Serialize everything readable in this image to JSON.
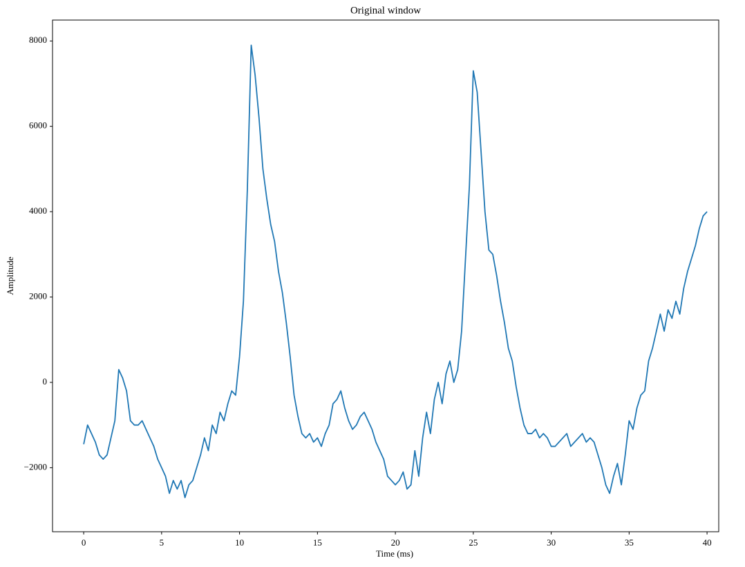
{
  "chart_data": {
    "type": "line",
    "title": "Original window",
    "x_label": "Time (ms)",
    "y_label": "Amplitude",
    "color": "#1f77b4",
    "grid": false,
    "xlim": [
      -2,
      40.75
    ],
    "ylim": [
      -3500,
      8490
    ],
    "xticks": [
      0,
      5,
      10,
      15,
      20,
      25,
      30,
      35,
      40
    ],
    "yticks": [
      {
        "value": -2000,
        "label": "−2000"
      },
      0,
      2000,
      4000,
      6000,
      8000
    ],
    "x": [
      0,
      0.25,
      0.5,
      0.75,
      1,
      1.25,
      1.5,
      1.75,
      2,
      2.25,
      2.5,
      2.75,
      3,
      3.25,
      3.5,
      3.75,
      4,
      4.25,
      4.5,
      4.75,
      5,
      5.25,
      5.5,
      5.75,
      6,
      6.25,
      6.5,
      6.75,
      7,
      7.25,
      7.5,
      7.75,
      8,
      8.25,
      8.5,
      8.75,
      9,
      9.25,
      9.5,
      9.75,
      10,
      10.25,
      10.5,
      10.75,
      11,
      11.25,
      11.5,
      11.75,
      12,
      12.25,
      12.5,
      12.75,
      13,
      13.25,
      13.5,
      13.75,
      14,
      14.25,
      14.5,
      14.75,
      15,
      15.25,
      15.5,
      15.75,
      16,
      16.25,
      16.5,
      16.75,
      17,
      17.25,
      17.5,
      17.75,
      18,
      18.25,
      18.5,
      18.75,
      19,
      19.25,
      19.5,
      19.75,
      20,
      20.25,
      20.5,
      20.75,
      21,
      21.25,
      21.5,
      21.75,
      22,
      22.25,
      22.5,
      22.75,
      23,
      23.25,
      23.5,
      23.75,
      24,
      24.25,
      24.5,
      24.75,
      25,
      25.25,
      25.5,
      25.75,
      26,
      26.25,
      26.5,
      26.75,
      27,
      27.25,
      27.5,
      27.75,
      28,
      28.25,
      28.5,
      28.75,
      29,
      29.25,
      29.5,
      29.75,
      30,
      30.25,
      30.5,
      30.75,
      31,
      31.25,
      31.5,
      31.75,
      32,
      32.25,
      32.5,
      32.75,
      33,
      33.25,
      33.5,
      33.75,
      34,
      34.25,
      34.5,
      34.75,
      35,
      35.25,
      35.5,
      35.75,
      36,
      36.25,
      36.5,
      36.75,
      37,
      37.25,
      37.5,
      37.75,
      38,
      38.25,
      38.5,
      38.75,
      39,
      39.25,
      39.5,
      39.75,
      40
    ],
    "values": [
      -1450,
      -1000,
      -1200,
      -1400,
      -1700,
      -1800,
      -1700,
      -1300,
      -900,
      300,
      100,
      -200,
      -900,
      -1000,
      -1000,
      -900,
      -1100,
      -1300,
      -1500,
      -1800,
      -2000,
      -2200,
      -2600,
      -2300,
      -2500,
      -2300,
      -2700,
      -2400,
      -2300,
      -2000,
      -1700,
      -1300,
      -1600,
      -1000,
      -1200,
      -700,
      -900,
      -500,
      -200,
      -300,
      600,
      1900,
      4500,
      7900,
      7200,
      6200,
      5000,
      4300,
      3700,
      3300,
      2600,
      2100,
      1400,
      600,
      -300,
      -800,
      -1200,
      -1300,
      -1200,
      -1400,
      -1300,
      -1500,
      -1200,
      -1000,
      -500,
      -400,
      -200,
      -600,
      -900,
      -1100,
      -1000,
      -800,
      -700,
      -900,
      -1100,
      -1400,
      -1600,
      -1800,
      -2200,
      -2300,
      -2400,
      -2300,
      -2100,
      -2500,
      -2400,
      -1600,
      -2200,
      -1300,
      -700,
      -1200,
      -400,
      0,
      -500,
      200,
      500,
      0,
      300,
      1200,
      2900,
      4600,
      7300,
      6800,
      5400,
      4000,
      3100,
      3000,
      2500,
      1900,
      1400,
      800,
      500,
      -100,
      -600,
      -1000,
      -1200,
      -1200,
      -1100,
      -1300,
      -1200,
      -1300,
      -1500,
      -1500,
      -1400,
      -1300,
      -1200,
      -1500,
      -1400,
      -1300,
      -1200,
      -1400,
      -1300,
      -1400,
      -1700,
      -2000,
      -2400,
      -2600,
      -2200,
      -1900,
      -2400,
      -1700,
      -900,
      -1100,
      -600,
      -300,
      -200,
      500,
      800,
      1200,
      1600,
      1200,
      1700,
      1500,
      1900,
      1600,
      2200,
      2600,
      2900,
      3200,
      3600,
      3900,
      4000
    ]
  }
}
